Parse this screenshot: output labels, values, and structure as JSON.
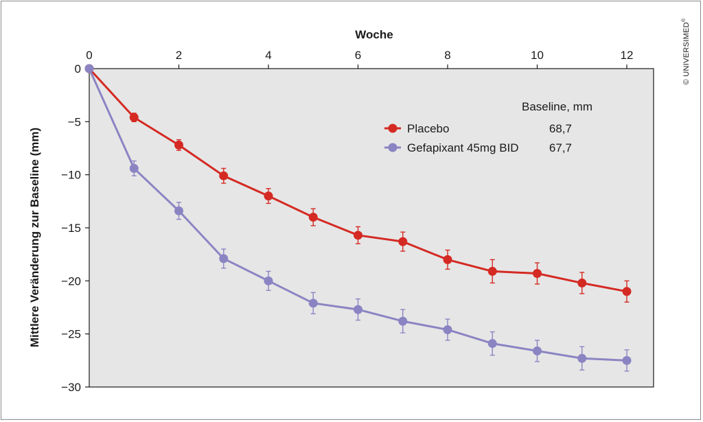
{
  "chart_data": {
    "type": "line",
    "xlabel": "Woche",
    "ylabel": "Mittlere Veränderung zur Baseline (mm)",
    "xlim": [
      0,
      12
    ],
    "ylim": [
      -30,
      0
    ],
    "xticks": [
      "0",
      "2",
      "4",
      "6",
      "8",
      "10",
      "12"
    ],
    "yticks": [
      "0",
      "−5",
      "−10",
      "−15",
      "−20",
      "−25",
      "−30"
    ],
    "legend_header": "Baseline, mm",
    "legend_position": "top-right",
    "grid": false,
    "series": [
      {
        "name": "Placebo",
        "baseline": "68,7",
        "color": "#d42a23",
        "x": [
          0,
          1,
          2,
          3,
          4,
          5,
          6,
          7,
          8,
          9,
          10,
          11,
          12
        ],
        "values": [
          0,
          -4.6,
          -7.2,
          -10.1,
          -12.0,
          -14.0,
          -15.7,
          -16.3,
          -18.0,
          -19.1,
          -19.3,
          -20.2,
          -21.0
        ],
        "errors": [
          0,
          0.4,
          0.5,
          0.7,
          0.7,
          0.8,
          0.8,
          0.9,
          0.9,
          1.1,
          1.0,
          1.0,
          1.0
        ]
      },
      {
        "name": "Gefapixant 45mg BID",
        "baseline": "67,7",
        "color": "#8b84c3",
        "x": [
          0,
          1,
          2,
          3,
          4,
          5,
          6,
          7,
          8,
          9,
          10,
          11,
          12
        ],
        "values": [
          0,
          -9.4,
          -13.4,
          -17.9,
          -20.0,
          -22.1,
          -22.7,
          -23.8,
          -24.6,
          -25.9,
          -26.6,
          -27.3,
          -27.5
        ],
        "errors": [
          0,
          0.7,
          0.8,
          0.9,
          0.9,
          1.0,
          1.0,
          1.1,
          1.0,
          1.1,
          1.0,
          1.1,
          1.0
        ]
      }
    ]
  },
  "copyright": "© UNIVERSIMED",
  "copyright_mark": "®"
}
